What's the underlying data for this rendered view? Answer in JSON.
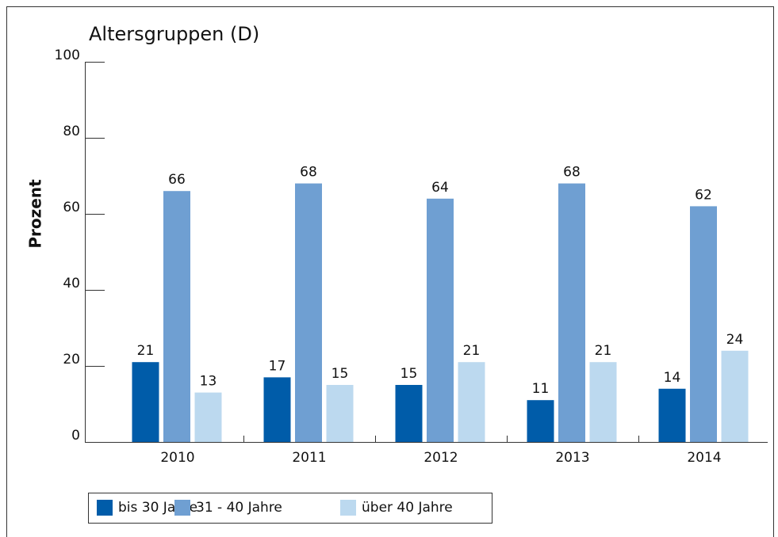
{
  "chart_data": {
    "type": "bar",
    "title": "Altersgruppen (D)",
    "y_label": "Prozent",
    "categories": [
      "2010",
      "2011",
      "2012",
      "2013",
      "2014"
    ],
    "series": [
      {
        "name": "bis 30 Jahre",
        "color": "#005ca9",
        "values": [
          21,
          17,
          15,
          11,
          14
        ]
      },
      {
        "name": "31 - 40 Jahre",
        "color": "#6f9fd2",
        "values": [
          66,
          68,
          64,
          68,
          62
        ]
      },
      {
        "name": "über 40 Jahre",
        "color": "#bcd9ef",
        "values": [
          13,
          15,
          21,
          21,
          24
        ]
      }
    ],
    "ylim": [
      0,
      100
    ],
    "yticks": [
      0,
      20,
      40,
      60,
      80,
      100
    ],
    "legend": "bottom"
  }
}
